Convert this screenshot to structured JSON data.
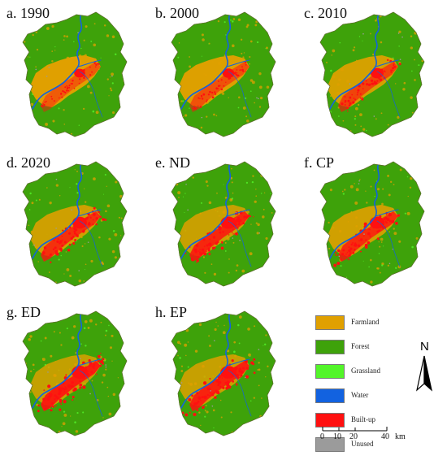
{
  "panels": [
    {
      "label": "a. 1990",
      "urban": 0.35,
      "farm": 1.0
    },
    {
      "label": "b. 2000",
      "urban": 0.45,
      "farm": 0.95
    },
    {
      "label": "c. 2010",
      "urban": 0.6,
      "farm": 0.85
    },
    {
      "label": "d. 2020",
      "urban": 0.8,
      "farm": 0.75
    },
    {
      "label": "e. ND",
      "urban": 0.9,
      "farm": 0.7
    },
    {
      "label": "f. CP",
      "urban": 0.85,
      "farm": 0.78
    },
    {
      "label": "g. ED",
      "urban": 1.0,
      "farm": 0.6
    },
    {
      "label": "h. EP",
      "urban": 0.95,
      "farm": 0.65
    }
  ],
  "legend": [
    {
      "name": "Farmland",
      "color": "#e0a000"
    },
    {
      "name": "Forest",
      "color": "#3ea20a"
    },
    {
      "name": "Grassland",
      "color": "#53f529"
    },
    {
      "name": "Water",
      "color": "#1262e0"
    },
    {
      "name": "Built-up",
      "color": "#ff1010"
    },
    {
      "name": "Unused",
      "color": "#9b9b9b"
    }
  ],
  "north_arrow": "N",
  "scale_bar": {
    "ticks": [
      "0",
      "10",
      "20",
      "40"
    ],
    "unit": "km"
  }
}
